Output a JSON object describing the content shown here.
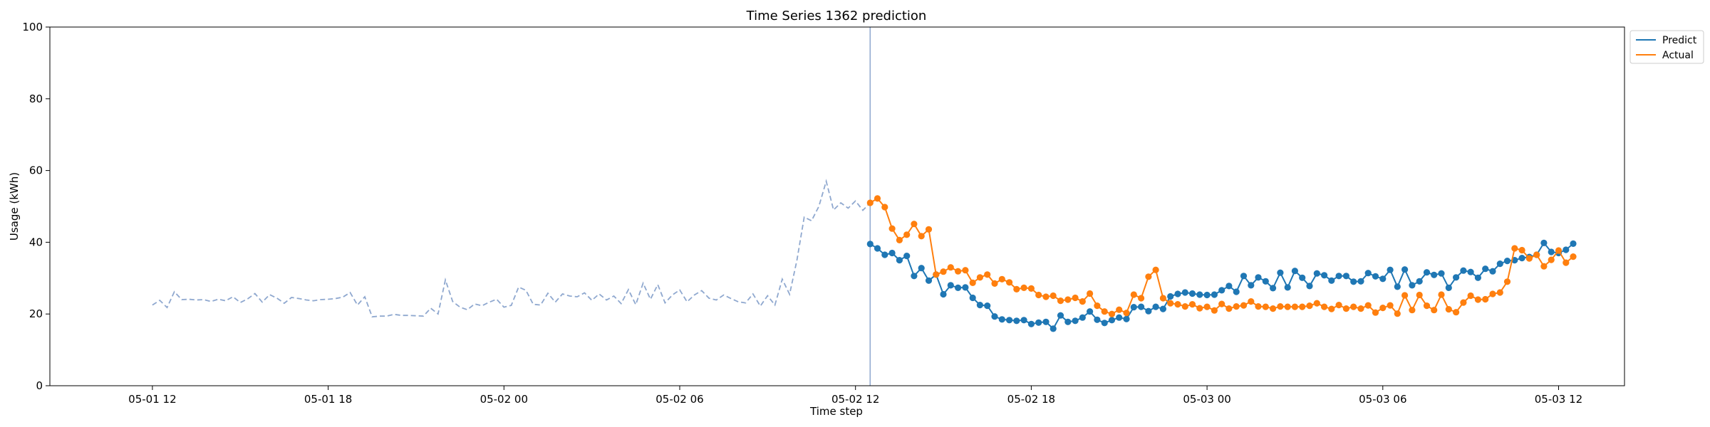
{
  "chart_data": {
    "type": "line",
    "title": "Time Series 1362 prediction",
    "xlabel": "Time step",
    "ylabel": "Usage (kWh)",
    "ylim": [
      0,
      100
    ],
    "yticks": [
      0,
      20,
      40,
      60,
      80,
      100
    ],
    "xlim": [
      "2024-05-01 08:30",
      "2024-05-03 14:15"
    ],
    "xticks": [
      {
        "label": "05-01 12",
        "t": "2024-05-01 12:00"
      },
      {
        "label": "05-01 18",
        "t": "2024-05-01 18:00"
      },
      {
        "label": "05-02 00",
        "t": "2024-05-02 00:00"
      },
      {
        "label": "05-02 06",
        "t": "2024-05-02 06:00"
      },
      {
        "label": "05-02 12",
        "t": "2024-05-02 12:00"
      },
      {
        "label": "05-02 18",
        "t": "2024-05-02 18:00"
      },
      {
        "label": "05-03 00",
        "t": "2024-05-03 00:00"
      },
      {
        "label": "05-03 06",
        "t": "2024-05-03 06:00"
      },
      {
        "label": "05-03 12",
        "t": "2024-05-03 12:00"
      }
    ],
    "forecast_start": "2024-05-02 12:30",
    "legend": {
      "position": "outside-top-right",
      "entries": [
        "Predict",
        "Actual"
      ]
    },
    "colors": {
      "history": "#8fa8cf",
      "predict": "#1f77b4",
      "actual": "#ff7f0e",
      "divider": "#8fa8cf"
    },
    "history": {
      "start": "2024-05-01 12:00",
      "step_minutes": 15,
      "values": [
        22.5,
        23.8,
        21.8,
        26.2,
        24.0,
        24.1,
        23.9,
        24.0,
        23.5,
        24.1,
        23.7,
        24.8,
        23.2,
        24.2,
        25.7,
        23.3,
        25.4,
        24.4,
        23.0,
        24.6,
        24.3,
        23.9,
        23.7,
        24.0,
        24.1,
        24.3,
        24.7,
        26.0,
        22.5,
        24.8,
        19.2,
        19.4,
        19.4,
        19.9,
        19.6,
        19.6,
        19.5,
        19.4,
        21.6,
        20.0,
        29.5,
        23.5,
        21.9,
        21.2,
        22.8,
        22.3,
        23.3,
        24.1,
        21.9,
        22.4,
        27.5,
        26.6,
        22.7,
        22.5,
        25.8,
        23.3,
        25.6,
        25.0,
        24.8,
        25.9,
        23.8,
        25.6,
        23.9,
        25.0,
        22.9,
        26.8,
        22.6,
        28.6,
        24.1,
        28.2,
        23.1,
        25.3,
        26.7,
        23.4,
        25.3,
        26.5,
        24.4,
        23.9,
        25.3,
        24.3,
        23.4,
        23.1,
        25.6,
        22.2,
        25.1,
        22.5,
        29.7,
        25.5,
        35.0,
        47.0,
        46.0,
        50.0,
        57.0,
        49.0,
        51.0,
        49.5,
        51.5,
        48.9,
        51.0
      ]
    },
    "series": [
      {
        "name": "Predict",
        "start": "2024-05-02 12:30",
        "step_minutes": 15,
        "values": [
          39.5,
          38.3,
          36.5,
          37.0,
          35.0,
          36.2,
          30.6,
          32.8,
          29.3,
          31.0,
          25.5,
          28.0,
          27.3,
          27.4,
          24.5,
          22.5,
          22.3,
          19.3,
          18.5,
          18.3,
          18.1,
          18.3,
          17.2,
          17.6,
          17.8,
          15.9,
          19.6,
          17.8,
          18.1,
          19.0,
          20.7,
          18.4,
          17.5,
          18.3,
          19.0,
          18.6,
          21.9,
          22.0,
          20.8,
          22.0,
          21.4,
          24.9,
          25.6,
          26.0,
          25.7,
          25.4,
          25.3,
          25.4,
          26.6,
          27.8,
          26.2,
          30.6,
          28.0,
          30.2,
          29.1,
          27.2,
          31.5,
          27.4,
          32.0,
          30.1,
          27.8,
          31.3,
          30.8,
          29.3,
          30.6,
          30.6,
          29.0,
          29.1,
          31.4,
          30.5,
          29.8,
          32.3,
          27.6,
          32.4,
          28.0,
          29.1,
          31.6,
          30.9,
          31.3,
          27.3,
          30.2,
          32.1,
          31.7,
          30.1,
          32.6,
          31.9,
          34.0,
          34.8,
          35.0,
          35.6,
          35.9,
          36.5,
          39.8,
          37.3,
          37.0,
          37.9,
          39.6
        ]
      },
      {
        "name": "Actual",
        "start": "2024-05-02 12:30",
        "step_minutes": 15,
        "values": [
          51.0,
          52.2,
          49.8,
          43.8,
          40.6,
          42.1,
          45.1,
          41.7,
          43.6,
          31.0,
          31.8,
          33.0,
          31.9,
          32.2,
          28.7,
          30.2,
          31.0,
          28.5,
          29.7,
          28.8,
          26.9,
          27.3,
          27.1,
          25.3,
          24.8,
          25.1,
          23.7,
          24.0,
          24.5,
          23.5,
          25.7,
          22.3,
          20.7,
          20.0,
          21.2,
          20.3,
          25.4,
          24.4,
          30.4,
          32.3,
          24.4,
          23.0,
          22.7,
          22.1,
          22.7,
          21.6,
          22.0,
          21.0,
          22.8,
          21.5,
          22.1,
          22.4,
          23.5,
          22.1,
          22.0,
          21.5,
          22.1,
          22.0,
          22.0,
          22.0,
          22.3,
          23.0,
          22.0,
          21.4,
          22.5,
          21.5,
          22.0,
          21.5,
          22.4,
          20.4,
          21.7,
          22.4,
          20.1,
          25.2,
          21.1,
          25.3,
          22.3,
          21.1,
          25.4,
          21.3,
          20.5,
          23.2,
          25.1,
          24.0,
          24.1,
          25.6,
          26.0,
          29.0,
          38.3,
          37.8,
          35.5,
          36.5,
          33.3,
          35.1,
          37.7,
          34.3,
          36.0
        ]
      }
    ]
  }
}
